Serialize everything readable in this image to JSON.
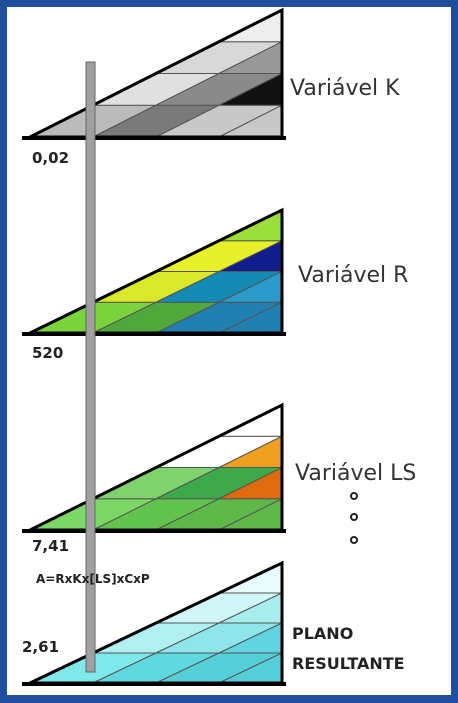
{
  "layers": [
    {
      "label": "Variável K",
      "value": "0,02"
    },
    {
      "label": "Variável R",
      "value": "520"
    },
    {
      "label": "Variável LS",
      "value": "7,41"
    }
  ],
  "formula": "A=RxKx[LS]xCxP",
  "result": {
    "value": "2,61",
    "label_line1": "PLANO",
    "label_line2": "RESULTANTE"
  }
}
